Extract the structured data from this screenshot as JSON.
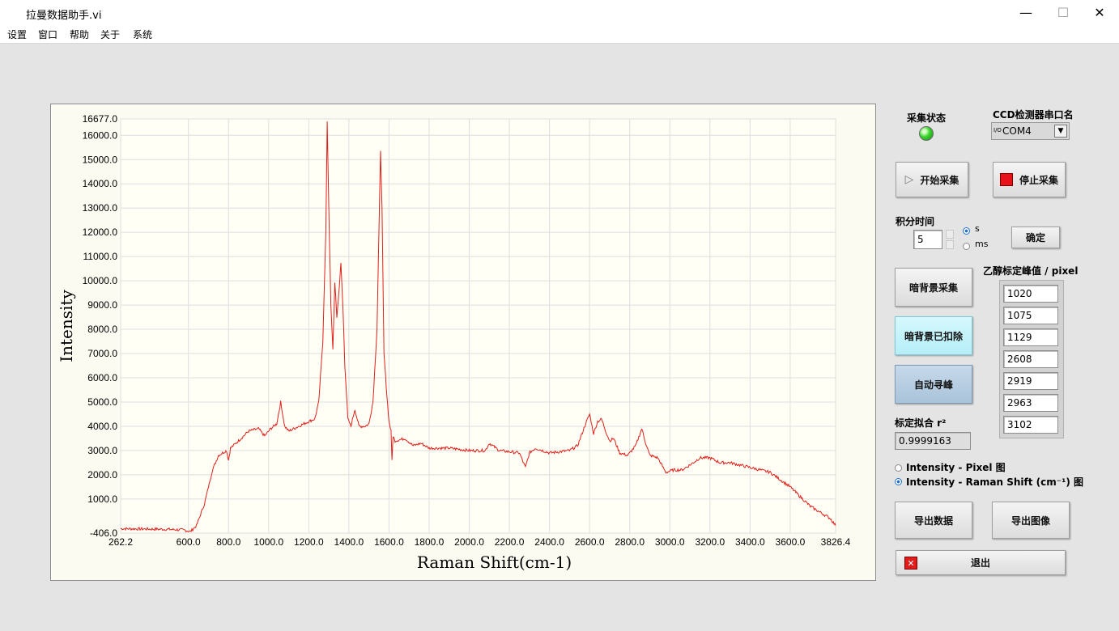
{
  "window": {
    "title": "拉曼数据助手.vi",
    "minimize": "—",
    "maximize": "☐",
    "close": "✕"
  },
  "menu": [
    "设置",
    "窗口",
    "帮助",
    "关于",
    "系统"
  ],
  "status": {
    "label": "采集状态",
    "led_color": "#39d42c"
  },
  "ccd": {
    "label": "CCD检测器串口名",
    "io_prefix": "I/O",
    "value": "COM4"
  },
  "buttons": {
    "start": "开始采集",
    "stop": "停止采集",
    "confirm": "确定",
    "dark_collect": "暗背景采集",
    "dark_removed": "暗背景已扣除",
    "auto_peak": "自动寻峰",
    "export_data": "导出数据",
    "export_image": "导出图像",
    "exit": "退出"
  },
  "integration": {
    "label": "积分时间",
    "value": "5",
    "unit_s": "s",
    "unit_ms": "ms",
    "selected": "s"
  },
  "ethanol": {
    "label": "乙醇标定峰值 / pixel",
    "values": [
      "1020",
      "1075",
      "1129",
      "2608",
      "2919",
      "2963",
      "3102"
    ]
  },
  "fit": {
    "label": "标定拟合 r²",
    "value": "0.9999163"
  },
  "plot_mode": {
    "pixel": "Intensity - Pixel 图",
    "raman": "Intensity - Raman Shift (cm⁻¹) 图",
    "selected": "raman"
  },
  "chart_data": {
    "type": "line",
    "xlabel": "Raman Shift(cm-1)",
    "ylabel": "Intensity",
    "xlim": [
      262.2,
      3826.4
    ],
    "ylim": [
      -406.0,
      16677.0
    ],
    "x_ticks": [
      "262.2",
      "600.0",
      "800.0",
      "1000.0",
      "1200.0",
      "1400.0",
      "1600.0",
      "1800.0",
      "2000.0",
      "2200.0",
      "2400.0",
      "2600.0",
      "2800.0",
      "3000.0",
      "3200.0",
      "3400.0",
      "3600.0",
      "3826.4"
    ],
    "y_ticks": [
      "-406.0",
      "1000.0",
      "2000.0",
      "3000.0",
      "4000.0",
      "5000.0",
      "6000.0",
      "7000.0",
      "8000.0",
      "9000.0",
      "10000.0",
      "11000.0",
      "12000.0",
      "13000.0",
      "14000.0",
      "15000.0",
      "16000.0",
      "16677.0"
    ],
    "grid": true,
    "series": [
      {
        "color": "#e0201a",
        "x": [
          262.2,
          500,
          580,
          610,
          640,
          680,
          720,
          750,
          790,
          800,
          810,
          850,
          900,
          950,
          980,
          1010,
          1040,
          1060,
          1080,
          1100,
          1150,
          1200,
          1230,
          1250,
          1270,
          1285,
          1292,
          1300,
          1310,
          1320,
          1330,
          1340,
          1350,
          1360,
          1370,
          1380,
          1395,
          1410,
          1430,
          1450,
          1480,
          1500,
          1520,
          1540,
          1550,
          1558,
          1565,
          1575,
          1590,
          1600,
          1610,
          1615,
          1620,
          1630,
          1680,
          1720,
          1760,
          1800,
          1900,
          2000,
          2080,
          2100,
          2150,
          2250,
          2280,
          2300,
          2330,
          2400,
          2500,
          2540,
          2580,
          2600,
          2620,
          2640,
          2660,
          2680,
          2700,
          2720,
          2750,
          2790,
          2830,
          2860,
          2880,
          2900,
          2940,
          2980,
          3020,
          3060,
          3100,
          3150,
          3200,
          3250,
          3300,
          3400,
          3500,
          3600,
          3700,
          3800,
          3826.4
        ],
        "y": [
          -220,
          -250,
          -280,
          -340,
          -100,
          800,
          2200,
          2800,
          3000,
          2600,
          3100,
          3400,
          3800,
          3900,
          3600,
          3900,
          4100,
          5000,
          4000,
          3800,
          4000,
          4200,
          4300,
          5000,
          7500,
          12000,
          16600,
          13000,
          9000,
          7200,
          9900,
          8500,
          9500,
          10700,
          9000,
          6500,
          4300,
          4000,
          4700,
          4000,
          4000,
          4100,
          5000,
          8000,
          12000,
          15400,
          13000,
          7000,
          5200,
          4200,
          3800,
          2600,
          3600,
          3400,
          3500,
          3200,
          3300,
          3100,
          3100,
          3000,
          3000,
          3300,
          3000,
          2900,
          2300,
          2900,
          3100,
          2900,
          3000,
          3200,
          4100,
          4500,
          3700,
          4200,
          4300,
          3800,
          3400,
          3500,
          2900,
          2800,
          3200,
          3900,
          3300,
          2800,
          2700,
          2100,
          2200,
          2200,
          2400,
          2700,
          2700,
          2500,
          2500,
          2300,
          2100,
          1500,
          700,
          200,
          -100
        ]
      }
    ]
  }
}
